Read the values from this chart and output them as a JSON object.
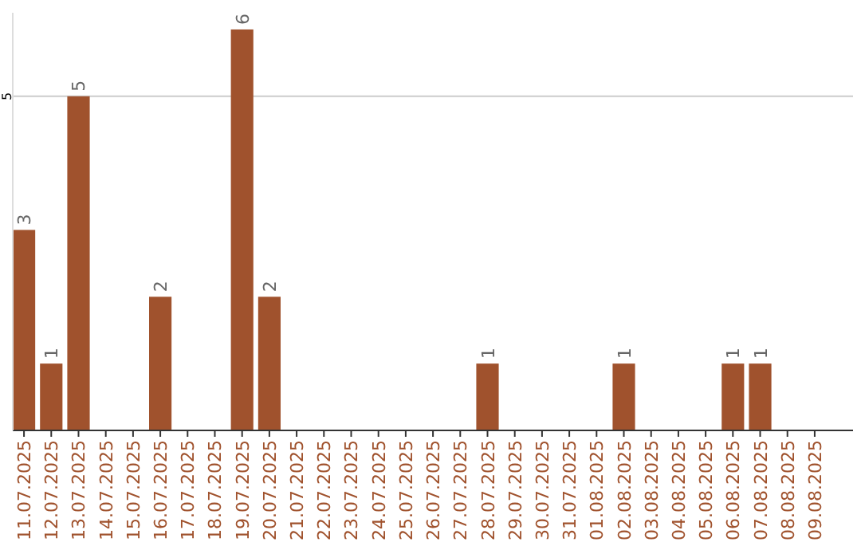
{
  "chart_data": {
    "type": "bar",
    "categories": [
      "11.07.2025",
      "12.07.2025",
      "13.07.2025",
      "14.07.2025",
      "15.07.2025",
      "16.07.2025",
      "17.07.2025",
      "18.07.2025",
      "19.07.2025",
      "20.07.2025",
      "21.07.2025",
      "22.07.2025",
      "23.07.2025",
      "24.07.2025",
      "25.07.2025",
      "26.07.2025",
      "27.07.2025",
      "28.07.2025",
      "29.07.2025",
      "30.07.2025",
      "31.07.2025",
      "01.08.2025",
      "02.08.2025",
      "03.08.2025",
      "04.08.2025",
      "05.08.2025",
      "06.08.2025",
      "07.08.2025",
      "08.08.2025",
      "09.08.2025"
    ],
    "values": [
      3,
      1,
      5,
      null,
      null,
      2,
      null,
      null,
      6,
      2,
      null,
      null,
      null,
      null,
      null,
      null,
      null,
      1,
      null,
      null,
      null,
      null,
      1,
      null,
      null,
      null,
      1,
      1,
      null,
      null
    ],
    "color": "#a0522d",
    "ylim": [
      0,
      6.25
    ],
    "yticks": [
      5
    ],
    "grid": "y",
    "data_labels": true
  }
}
